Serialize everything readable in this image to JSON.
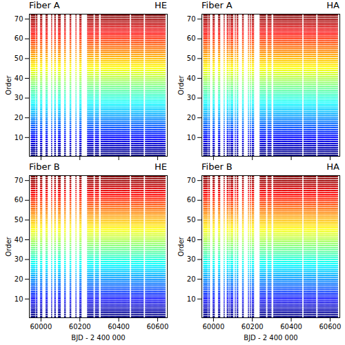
{
  "chart_data": [
    {
      "type": "scatter",
      "title": "Fiber A",
      "subtitle": "HE",
      "ylabel": "Order",
      "color": "jet",
      "tick_labels": "y",
      "xlim": [
        59940,
        60650
      ],
      "ylim": [
        0.5,
        72.5
      ],
      "xticks": [
        60000,
        60200,
        60400,
        60600
      ],
      "yticks": [
        10,
        20,
        30,
        40,
        50,
        60,
        70
      ],
      "orders": [
        1,
        2,
        3,
        4,
        5,
        6,
        7,
        8,
        9,
        10,
        11,
        12,
        13,
        14,
        15,
        16,
        17,
        18,
        19,
        20,
        21,
        22,
        23,
        24,
        25,
        26,
        27,
        28,
        29,
        30,
        31,
        32,
        33,
        34,
        35,
        36,
        37,
        38,
        39,
        40,
        41,
        42,
        43,
        44,
        45,
        46,
        47,
        48,
        49,
        50,
        51,
        52,
        53,
        54,
        55,
        56,
        57,
        58,
        59,
        60,
        61,
        62,
        63,
        64,
        65,
        66,
        67,
        68,
        69,
        70,
        71,
        72
      ],
      "x": [
        59950,
        59953,
        59956,
        59959,
        59962,
        59965,
        59968,
        59976,
        59979,
        59998,
        60001,
        60004,
        60026,
        60029,
        60032,
        60055,
        60071,
        60074,
        60090,
        60093,
        60096,
        60099,
        60122,
        60125,
        60150,
        60153,
        60180,
        60200,
        60203,
        60206,
        60240,
        60244,
        60248,
        60252,
        60256,
        60260,
        60264,
        60268,
        60280,
        60284,
        60288,
        60292,
        60296,
        60310,
        60314,
        60318,
        60322,
        60326,
        60330,
        60334,
        60338,
        60342,
        60346,
        60350,
        60354,
        60358,
        60362,
        60366,
        60370,
        60374,
        60378,
        60382,
        60386,
        60390,
        60394,
        60398,
        60402,
        60406,
        60410,
        60414,
        60418,
        60422,
        60426,
        60430,
        60434,
        60438,
        60442,
        60446,
        60450,
        60454,
        60466,
        60470,
        60474,
        60478,
        60482,
        60486,
        60490,
        60494,
        60498,
        60502,
        60506,
        60510,
        60514,
        60518,
        60522,
        60526,
        60538,
        60542,
        60546,
        60550,
        60554,
        60558,
        60562,
        60566,
        60570,
        60574,
        60578,
        60582,
        60586,
        60590,
        60594,
        60598,
        60602,
        60606,
        60610,
        60614,
        60618,
        60622,
        60626,
        60630,
        60634,
        60638
      ]
    },
    {
      "type": "scatter",
      "title": "Fiber A",
      "subtitle": "HA",
      "ylabel": "Order",
      "color": "jet",
      "tick_labels": "y",
      "xlim": [
        59940,
        60650
      ],
      "ylim": [
        0.5,
        72.5
      ],
      "xticks": [
        60000,
        60200,
        60400,
        60600
      ],
      "yticks": [
        10,
        20,
        30,
        40,
        50,
        60,
        70
      ],
      "orders": [
        1,
        2,
        3,
        4,
        5,
        6,
        7,
        8,
        9,
        10,
        11,
        12,
        13,
        14,
        15,
        16,
        17,
        18,
        19,
        20,
        21,
        22,
        23,
        24,
        25,
        26,
        27,
        28,
        29,
        30,
        31,
        32,
        33,
        34,
        35,
        36,
        37,
        38,
        39,
        40,
        41,
        42,
        43,
        44,
        45,
        46,
        47,
        48,
        49,
        50,
        51,
        52,
        53,
        54,
        55,
        56,
        57,
        58,
        59,
        60,
        61,
        62,
        63,
        64,
        65,
        66,
        67,
        68,
        69,
        70,
        71,
        72
      ],
      "x": [
        59950,
        59953,
        59956,
        59959,
        59962,
        59965,
        59968,
        59976,
        59979,
        59998,
        60001,
        60004,
        60026,
        60029,
        60032,
        60055,
        60071,
        60074,
        60082,
        60090,
        60093,
        60096,
        60099,
        60112,
        60122,
        60125,
        60150,
        60153,
        60180,
        60190,
        60200,
        60203,
        60206,
        60240,
        60244,
        60248,
        60252,
        60256,
        60260,
        60264,
        60268,
        60280,
        60284,
        60288,
        60292,
        60296,
        60310,
        60314,
        60318,
        60322,
        60326,
        60330,
        60334,
        60338,
        60342,
        60346,
        60350,
        60354,
        60358,
        60362,
        60366,
        60370,
        60374,
        60378,
        60382,
        60386,
        60390,
        60394,
        60398,
        60402,
        60406,
        60410,
        60414,
        60418,
        60422,
        60426,
        60430,
        60434,
        60438,
        60442,
        60446,
        60450,
        60454,
        60466,
        60470,
        60474,
        60478,
        60482,
        60486,
        60490,
        60494,
        60498,
        60502,
        60506,
        60510,
        60514,
        60518,
        60522,
        60526,
        60538,
        60542,
        60546,
        60550,
        60554,
        60558,
        60562,
        60566,
        60570,
        60574,
        60578,
        60582,
        60586,
        60590,
        60594,
        60598,
        60602,
        60606,
        60610,
        60614,
        60618,
        60622,
        60626,
        60630,
        60634,
        60638
      ]
    },
    {
      "type": "scatter",
      "title": "Fiber B",
      "subtitle": "HE",
      "xlabel": "BJD - 2 400 000",
      "ylabel": "Order",
      "color": "jet",
      "xlim": [
        59940,
        60650
      ],
      "ylim": [
        0.5,
        72.5
      ],
      "xticks": [
        60000,
        60200,
        60400,
        60600
      ],
      "yticks": [
        10,
        20,
        30,
        40,
        50,
        60,
        70
      ],
      "orders": [
        1,
        2,
        3,
        4,
        5,
        6,
        7,
        8,
        9,
        10,
        11,
        12,
        13,
        14,
        15,
        16,
        17,
        18,
        19,
        20,
        21,
        22,
        23,
        24,
        25,
        26,
        27,
        28,
        29,
        30,
        31,
        32,
        33,
        34,
        35,
        36,
        37,
        38,
        39,
        40,
        41,
        42,
        43,
        44,
        45,
        46,
        47,
        48,
        49,
        50,
        51,
        52,
        53,
        54,
        55,
        56,
        57,
        58,
        59,
        60,
        61,
        62,
        63,
        64,
        65,
        66,
        67,
        68,
        69,
        70,
        71,
        72
      ],
      "x": [
        59950,
        59953,
        59956,
        59959,
        59962,
        59965,
        59968,
        59976,
        59979,
        59998,
        60001,
        60004,
        60026,
        60029,
        60032,
        60055,
        60071,
        60074,
        60090,
        60093,
        60096,
        60099,
        60122,
        60125,
        60150,
        60153,
        60180,
        60200,
        60203,
        60206,
        60240,
        60244,
        60248,
        60252,
        60256,
        60260,
        60264,
        60268,
        60280,
        60284,
        60288,
        60292,
        60296,
        60310,
        60314,
        60318,
        60322,
        60326,
        60330,
        60334,
        60338,
        60342,
        60346,
        60350,
        60354,
        60358,
        60362,
        60366,
        60370,
        60374,
        60378,
        60382,
        60386,
        60390,
        60394,
        60398,
        60402,
        60406,
        60410,
        60414,
        60418,
        60422,
        60426,
        60430,
        60434,
        60438,
        60442,
        60446,
        60450,
        60454,
        60466,
        60470,
        60474,
        60478,
        60482,
        60486,
        60490,
        60494,
        60498,
        60502,
        60506,
        60510,
        60514,
        60518,
        60522,
        60526,
        60538,
        60542,
        60546,
        60550,
        60554,
        60558,
        60562,
        60566,
        60570,
        60574,
        60578,
        60582,
        60586,
        60590,
        60594,
        60598,
        60602,
        60606,
        60610,
        60614,
        60618,
        60622,
        60626,
        60630,
        60634,
        60638
      ]
    },
    {
      "type": "scatter",
      "title": "Fiber B",
      "subtitle": "HA",
      "xlabel": "BJD - 2 400 000",
      "ylabel": "Order",
      "color": "jet",
      "xlim": [
        59940,
        60650
      ],
      "ylim": [
        0.5,
        72.5
      ],
      "xticks": [
        60000,
        60200,
        60400,
        60600
      ],
      "yticks": [
        10,
        20,
        30,
        40,
        50,
        60,
        70
      ],
      "orders": [
        1,
        2,
        3,
        4,
        5,
        6,
        7,
        8,
        9,
        10,
        11,
        12,
        13,
        14,
        15,
        16,
        17,
        18,
        19,
        20,
        21,
        22,
        23,
        24,
        25,
        26,
        27,
        28,
        29,
        30,
        31,
        32,
        33,
        34,
        35,
        36,
        37,
        38,
        39,
        40,
        41,
        42,
        43,
        44,
        45,
        46,
        47,
        48,
        49,
        50,
        51,
        52,
        53,
        54,
        55,
        56,
        57,
        58,
        59,
        60,
        61,
        62,
        63,
        64,
        65,
        66,
        67,
        68,
        69,
        70,
        71,
        72
      ],
      "x": [
        59950,
        59953,
        59956,
        59959,
        59962,
        59965,
        59968,
        59976,
        59979,
        59998,
        60001,
        60004,
        60026,
        60029,
        60032,
        60055,
        60071,
        60074,
        60082,
        60090,
        60093,
        60096,
        60099,
        60112,
        60122,
        60125,
        60150,
        60153,
        60180,
        60190,
        60200,
        60203,
        60206,
        60240,
        60244,
        60248,
        60252,
        60256,
        60260,
        60264,
        60268,
        60280,
        60284,
        60288,
        60292,
        60296,
        60310,
        60314,
        60318,
        60322,
        60326,
        60330,
        60334,
        60338,
        60342,
        60346,
        60350,
        60354,
        60358,
        60362,
        60366,
        60370,
        60374,
        60378,
        60382,
        60386,
        60390,
        60394,
        60398,
        60402,
        60406,
        60410,
        60414,
        60418,
        60422,
        60426,
        60430,
        60434,
        60438,
        60442,
        60446,
        60450,
        60454,
        60466,
        60470,
        60474,
        60478,
        60482,
        60486,
        60490,
        60494,
        60498,
        60502,
        60506,
        60510,
        60514,
        60518,
        60522,
        60526,
        60538,
        60542,
        60546,
        60550,
        60554,
        60558,
        60562,
        60566,
        60570,
        60574,
        60578,
        60582,
        60586,
        60590,
        60594,
        60598,
        60602,
        60606,
        60610,
        60614,
        60618,
        60622,
        60626,
        60630,
        60634,
        60638
      ]
    }
  ]
}
